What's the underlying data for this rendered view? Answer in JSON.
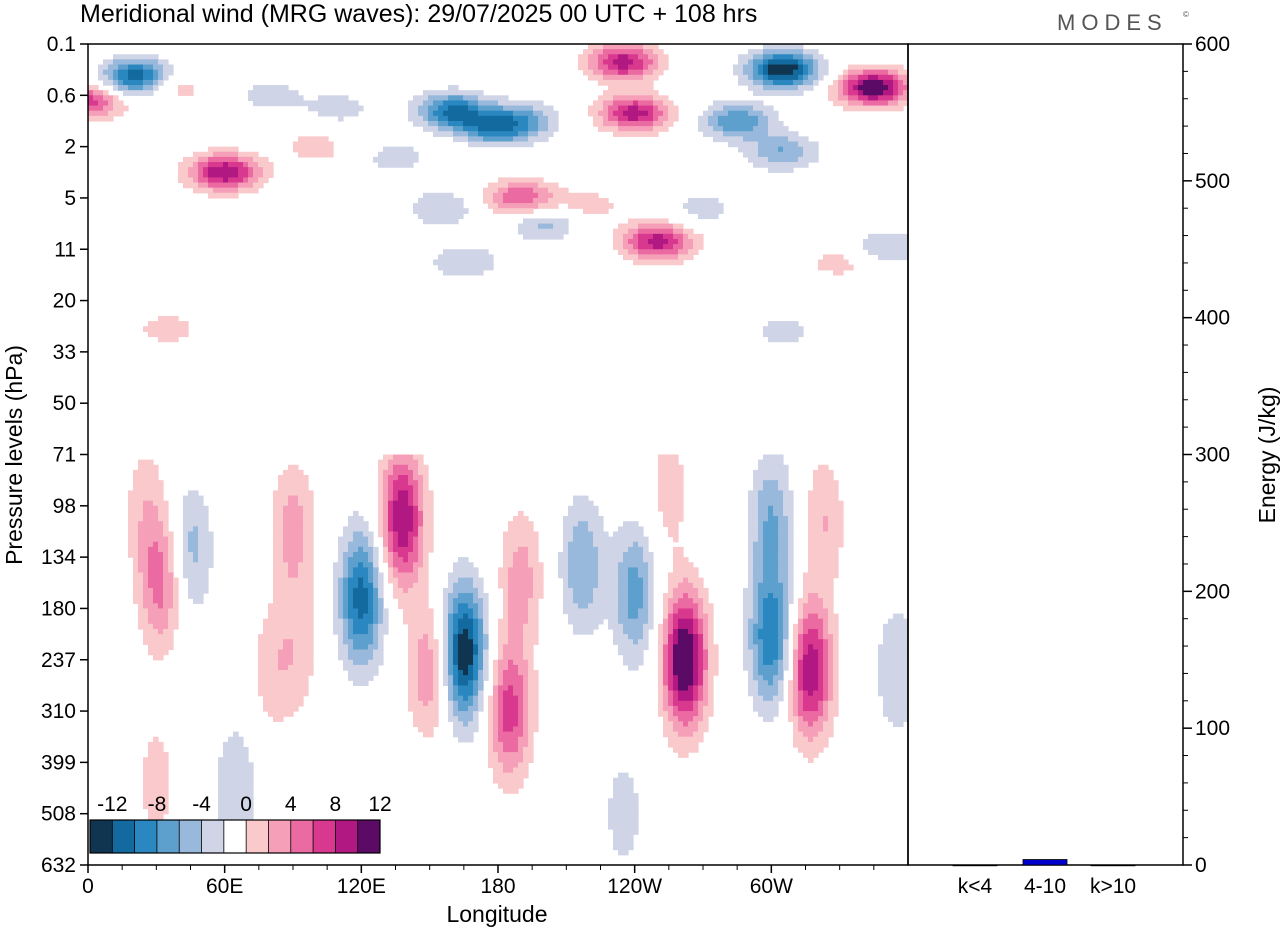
{
  "title": "Meridional wind (MRG waves):  29/07/2025  00 UTC  + 108 hrs",
  "brand": "MODES",
  "brand_mark": "©",
  "chart_data": [
    {
      "type": "heatmap",
      "title": "Meridional wind (MRG waves):  29/07/2025  00 UTC  + 108 hrs",
      "xlabel": "Longitude",
      "ylabel": "Pressure levels (hPa)",
      "x_ticks": [
        "0",
        "60E",
        "120E",
        "180",
        "120W",
        "60W"
      ],
      "x_tick_values": [
        0,
        60,
        120,
        180,
        240,
        300
      ],
      "xlim": [
        0,
        360
      ],
      "y_ticks": [
        "0.1",
        "0.6",
        "2",
        "5",
        "11",
        "20",
        "33",
        "50",
        "71",
        "98",
        "134",
        "180",
        "237",
        "310",
        "399",
        "508",
        "632"
      ],
      "colorbar": {
        "labels": [
          "-12",
          "-8",
          "-4",
          "0",
          "4",
          "8",
          "12"
        ],
        "levels": [
          -14,
          -12,
          -10,
          -8,
          -6,
          -4,
          -2,
          2,
          4,
          6,
          8,
          10,
          12,
          14
        ],
        "colors": [
          "#0f3550",
          "#136a9f",
          "#2a87c0",
          "#5d9fcd",
          "#98b9dc",
          "#cfd4e6",
          "#ffffff",
          "#f9c9cb",
          "#f5a0b8",
          "#ec6aa2",
          "#d9388f",
          "#b11882",
          "#5b0a66"
        ]
      },
      "features": [
        {
          "lon": 22,
          "lev": 1.3,
          "value": -13
        },
        {
          "lon": 0,
          "lev": 2.2,
          "value": 9
        },
        {
          "lon": 35,
          "lev": 1.6,
          "value": 5
        },
        {
          "lon": 60,
          "lev": 5.0,
          "value": 12
        },
        {
          "lon": 80,
          "lev": 2.0,
          "value": -3
        },
        {
          "lon": 110,
          "lev": 2.5,
          "value": -3
        },
        {
          "lon": 100,
          "lev": 4.0,
          "value": 3
        },
        {
          "lon": 135,
          "lev": 4.4,
          "value": -3
        },
        {
          "lon": 160,
          "lev": 2.6,
          "value": -10
        },
        {
          "lon": 175,
          "lev": 3.4,
          "value": -9
        },
        {
          "lon": 190,
          "lev": 3.0,
          "value": -7
        },
        {
          "lon": 155,
          "lev": 6.4,
          "value": -4
        },
        {
          "lon": 165,
          "lev": 8.5,
          "value": -4
        },
        {
          "lon": 170,
          "lev": 3.8,
          "value": 3
        },
        {
          "lon": 190,
          "lev": 6.0,
          "value": 8
        },
        {
          "lon": 200,
          "lev": 7.0,
          "value": -5
        },
        {
          "lon": 235,
          "lev": 0.7,
          "value": 11
        },
        {
          "lon": 240,
          "lev": 2.7,
          "value": 11
        },
        {
          "lon": 220,
          "lev": 6.3,
          "value": 3
        },
        {
          "lon": 250,
          "lev": 7.7,
          "value": 11
        },
        {
          "lon": 270,
          "lev": 6.4,
          "value": -3
        },
        {
          "lon": 285,
          "lev": 3.0,
          "value": -8
        },
        {
          "lon": 305,
          "lev": 1.0,
          "value": -14
        },
        {
          "lon": 305,
          "lev": 4.2,
          "value": -6
        },
        {
          "lon": 305,
          "lev": 11.2,
          "value": -3
        },
        {
          "lon": 345,
          "lev": 1.7,
          "value": 14
        },
        {
          "lon": 330,
          "lev": 8.5,
          "value": 3
        },
        {
          "lon": 350,
          "lev": 7.9,
          "value": -4
        },
        {
          "lon": 35,
          "lev": 11.1,
          "value": 3
        },
        {
          "lon": 25,
          "lev": 18.0,
          "value": 3
        },
        {
          "lon": 32,
          "lev": 21.0,
          "value": 7
        },
        {
          "lon": 45,
          "lev": 19.7,
          "value": -5
        },
        {
          "lon": 90,
          "lev": 18.9,
          "value": 5
        },
        {
          "lon": 80,
          "lev": 24.4,
          "value": 3
        },
        {
          "lon": 92,
          "lev": 23.7,
          "value": 3
        },
        {
          "lon": 120,
          "lev": 21.6,
          "value": -11
        },
        {
          "lon": 138,
          "lev": 18.5,
          "value": 12
        },
        {
          "lon": 150,
          "lev": 24.4,
          "value": 6
        },
        {
          "lon": 165,
          "lev": 23.7,
          "value": -14
        },
        {
          "lon": 185,
          "lev": 26.0,
          "value": 9
        },
        {
          "lon": 190,
          "lev": 20.8,
          "value": 5
        },
        {
          "lon": 217,
          "lev": 20.3,
          "value": -6
        },
        {
          "lon": 240,
          "lev": 21.4,
          "value": -7
        },
        {
          "lon": 255,
          "lev": 17.4,
          "value": 3
        },
        {
          "lon": 262,
          "lev": 24.0,
          "value": 15
        },
        {
          "lon": 300,
          "lev": 23.2,
          "value": -10
        },
        {
          "lon": 300,
          "lev": 18.6,
          "value": -6
        },
        {
          "lon": 317,
          "lev": 24.4,
          "value": 12
        },
        {
          "lon": 323,
          "lev": 18.6,
          "value": 4
        },
        {
          "lon": 355,
          "lev": 24.4,
          "value": -4
        },
        {
          "lon": 65,
          "lev": 29.0,
          "value": -4
        },
        {
          "lon": 30,
          "lev": 28.8,
          "value": 3
        },
        {
          "lon": 235,
          "lev": 30.0,
          "value": -3
        }
      ]
    },
    {
      "type": "bar",
      "categories": [
        "k<4",
        "4-10",
        "k>10"
      ],
      "values": [
        0,
        4,
        0
      ],
      "ylabel": "Energy (J/kg)",
      "ylim": [
        0,
        600
      ],
      "y_ticks": [
        "0",
        "100",
        "200",
        "300",
        "400",
        "500",
        "600"
      ],
      "bar_color": "#0000cc"
    }
  ]
}
